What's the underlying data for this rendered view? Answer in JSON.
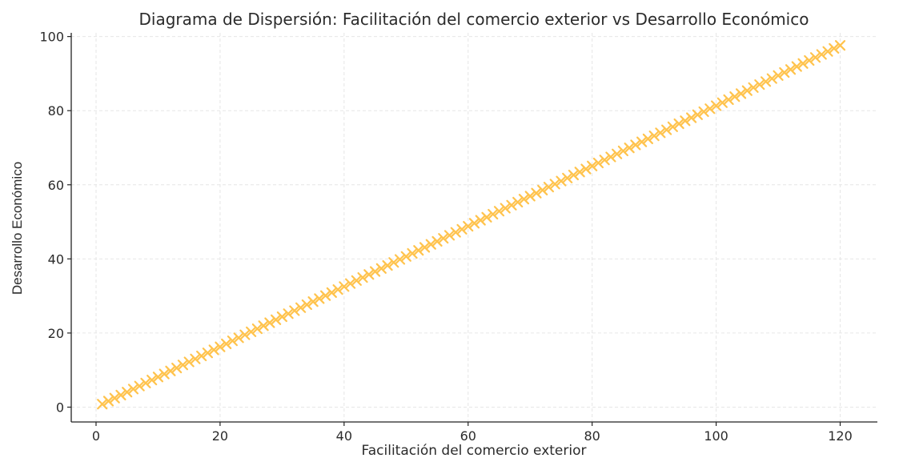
{
  "chart_data": {
    "type": "scatter",
    "title": "Diagrama de Dispersión: Facilitación del comercio exterior vs Desarrollo Económico",
    "xlabel": "Facilitación del comercio exterior",
    "ylabel": "Desarrollo Económico",
    "xlim": [
      -4,
      126
    ],
    "ylim": [
      -4,
      101
    ],
    "x_ticks": [
      0,
      20,
      40,
      60,
      80,
      100,
      120
    ],
    "y_ticks": [
      0,
      20,
      40,
      60,
      80,
      100
    ],
    "grid": true,
    "marker": "x",
    "series": [
      {
        "color": "#ffc34d",
        "x_start": 1,
        "x_end": 120,
        "x_step": 1,
        "slope": 0.8134,
        "intercept": 0.0,
        "points_note": ""
      }
    ]
  }
}
